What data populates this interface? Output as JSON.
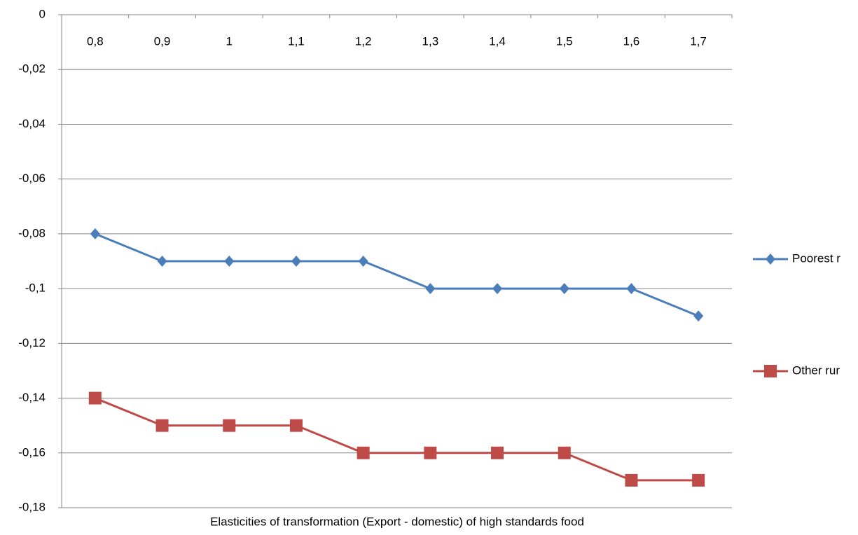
{
  "chart_data": {
    "type": "line",
    "xlabel": "Elasticities of transformation (Export - domestic) of high standards food",
    "categories": [
      "0,8",
      "0,9",
      "1",
      "1,1",
      "1,2",
      "1,3",
      "1,4",
      "1,5",
      "1,6",
      "1,7"
    ],
    "series": [
      {
        "name": "Poorest r",
        "color": "#4a7ebb",
        "marker": "diamond",
        "values": [
          -0.08,
          -0.09,
          -0.09,
          -0.09,
          -0.09,
          -0.1,
          -0.1,
          -0.1,
          -0.1,
          -0.11
        ]
      },
      {
        "name": "Other rur",
        "color": "#be4b48",
        "marker": "square",
        "values": [
          -0.14,
          -0.15,
          -0.15,
          -0.15,
          -0.16,
          -0.16,
          -0.16,
          -0.16,
          -0.17,
          -0.17
        ]
      }
    ],
    "ylim": [
      -0.18,
      0
    ],
    "yticks": [
      {
        "value": -0.18,
        "label": "-0,18"
      },
      {
        "value": -0.16,
        "label": "-0,16"
      },
      {
        "value": -0.14,
        "label": "-0,14"
      },
      {
        "value": -0.12,
        "label": "-0,12"
      },
      {
        "value": -0.1,
        "label": "-0,1"
      },
      {
        "value": -0.08,
        "label": "-0,08"
      },
      {
        "value": -0.06,
        "label": "-0,06"
      },
      {
        "value": -0.04,
        "label": "-0,04"
      },
      {
        "value": -0.02,
        "label": "-0,02"
      },
      0
    ],
    "grid": true,
    "legend": "right"
  }
}
